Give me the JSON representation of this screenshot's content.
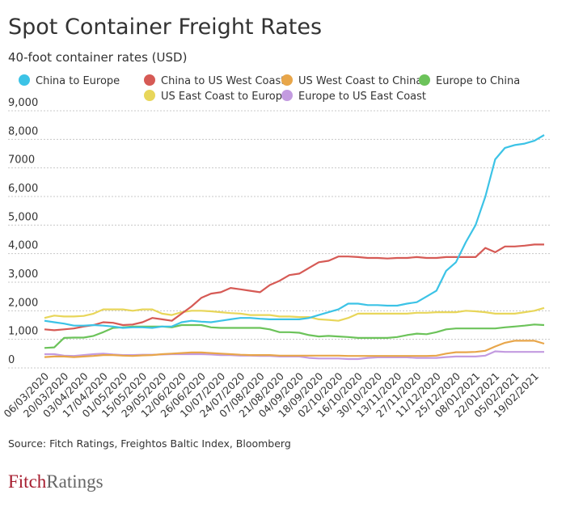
{
  "chart_data": {
    "type": "line",
    "title": "Spot Container Freight Rates",
    "subtitle": "40-foot container rates (USD)",
    "source": "Source: Fitch Ratings, Freightos Baltic Index, Bloomberg",
    "logo": {
      "fitch": "Fitch",
      "ratings": "Ratings"
    },
    "grid": true,
    "legend": "top",
    "categories": [
      "06/03/2020",
      null,
      "20/03/2020",
      null,
      "03/04/2020",
      null,
      "17/04/2020",
      null,
      "01/05/2020",
      null,
      "15/05/2020",
      null,
      "29/05/2020",
      null,
      "12/06/2020",
      null,
      "26/06/2020",
      null,
      "10/07/2020",
      null,
      "24/07/2020",
      null,
      "07/08/2020",
      null,
      "21/08/2020",
      null,
      "04/09/2020",
      null,
      "18/09/2020",
      null,
      "02/10/2020",
      null,
      "16/10/2020",
      null,
      "30/10/2020",
      null,
      "13/11/2020",
      null,
      "27/11/2020",
      null,
      "11/12/2020",
      null,
      "25/12/2020",
      null,
      "08/01/2021",
      null,
      "22/01/2021",
      null,
      "05/02/2021",
      null,
      "19/02/2021",
      null
    ],
    "ylim": [
      0,
      9000
    ],
    "yticks": [
      0,
      {
        "value": 1000,
        "label": "1,000"
      },
      {
        "value": 2000,
        "label": "2,000"
      },
      {
        "value": 3000,
        "label": "3,000"
      },
      {
        "value": 4000,
        "label": "4,000"
      },
      {
        "value": 5000,
        "label": "5,000"
      },
      {
        "value": 6000,
        "label": "6,000"
      },
      7000,
      {
        "value": 8000,
        "label": "8,000"
      },
      {
        "value": 9000,
        "label": "9,000"
      }
    ],
    "series": [
      {
        "name": "China to Europe",
        "color": "#3cc3e6",
        "values": [
          1650,
          1600,
          1550,
          1480,
          1480,
          1500,
          1480,
          1450,
          1400,
          1420,
          1420,
          1400,
          1450,
          1450,
          1600,
          1650,
          1620,
          1600,
          1650,
          1700,
          1750,
          1750,
          1720,
          1700,
          1700,
          1700,
          1700,
          1750,
          1850,
          1950,
          2050,
          2250,
          2250,
          2200,
          2200,
          2180,
          2180,
          2250,
          2300,
          2500,
          2700,
          3400,
          3700,
          4400,
          5000,
          6000,
          7300,
          7700,
          7800,
          7850,
          7950,
          8150
        ]
      },
      {
        "name": "China to US West Coast",
        "color": "#d65a55",
        "values": [
          1350,
          1320,
          1350,
          1380,
          1450,
          1500,
          1600,
          1580,
          1500,
          1520,
          1600,
          1750,
          1700,
          1650,
          1900,
          2150,
          2450,
          2600,
          2650,
          2800,
          2750,
          2700,
          2650,
          2900,
          3050,
          3250,
          3300,
          3500,
          3700,
          3750,
          3900,
          3900,
          3880,
          3850,
          3850,
          3830,
          3850,
          3850,
          3880,
          3850,
          3850,
          3880,
          3880,
          3880,
          3880,
          4200,
          4050,
          4250,
          4250,
          4280,
          4320,
          4320
        ]
      },
      {
        "name": "US West Coast to China",
        "color": "#e8a64a",
        "values": [
          380,
          400,
          400,
          380,
          400,
          420,
          450,
          450,
          430,
          420,
          440,
          450,
          480,
          500,
          520,
          540,
          540,
          520,
          500,
          480,
          460,
          450,
          450,
          450,
          430,
          430,
          430,
          430,
          430,
          430,
          430,
          420,
          420,
          420,
          420,
          420,
          420,
          420,
          420,
          420,
          430,
          500,
          550,
          550,
          560,
          600,
          750,
          880,
          950,
          950,
          950,
          850
        ]
      },
      {
        "name": "Europe to China",
        "color": "#6cc35a",
        "values": [
          700,
          720,
          1050,
          1060,
          1060,
          1120,
          1250,
          1400,
          1420,
          1450,
          1450,
          1450,
          1450,
          1420,
          1500,
          1500,
          1500,
          1420,
          1400,
          1400,
          1400,
          1400,
          1400,
          1350,
          1250,
          1250,
          1230,
          1150,
          1100,
          1120,
          1100,
          1080,
          1050,
          1050,
          1050,
          1050,
          1080,
          1150,
          1200,
          1180,
          1250,
          1350,
          1380,
          1380,
          1380,
          1380,
          1380,
          1420,
          1450,
          1480,
          1520,
          1500
        ]
      },
      {
        "name": "US East Coast to Europe",
        "color": "#e8d65a",
        "values": [
          1750,
          1830,
          1800,
          1800,
          1820,
          1900,
          2050,
          2050,
          2050,
          2000,
          2050,
          2050,
          1900,
          1850,
          1950,
          2000,
          2000,
          1980,
          1950,
          1920,
          1900,
          1850,
          1850,
          1850,
          1800,
          1800,
          1780,
          1780,
          1700,
          1680,
          1650,
          1750,
          1900,
          1900,
          1900,
          1900,
          1900,
          1900,
          1930,
          1930,
          1950,
          1950,
          1950,
          2000,
          1980,
          1950,
          1900,
          1900,
          1900,
          1950,
          2000,
          2100
        ]
      },
      {
        "name": "Europe to US East Coast",
        "color": "#c39be0",
        "values": [
          480,
          480,
          430,
          420,
          450,
          480,
          500,
          470,
          450,
          450,
          460,
          460,
          470,
          480,
          480,
          480,
          480,
          470,
          450,
          450,
          430,
          430,
          420,
          420,
          400,
          400,
          400,
          350,
          330,
          330,
          330,
          310,
          310,
          350,
          370,
          370,
          370,
          370,
          350,
          350,
          350,
          380,
          400,
          400,
          400,
          430,
          580,
          560,
          560,
          560,
          560,
          560
        ]
      }
    ]
  }
}
